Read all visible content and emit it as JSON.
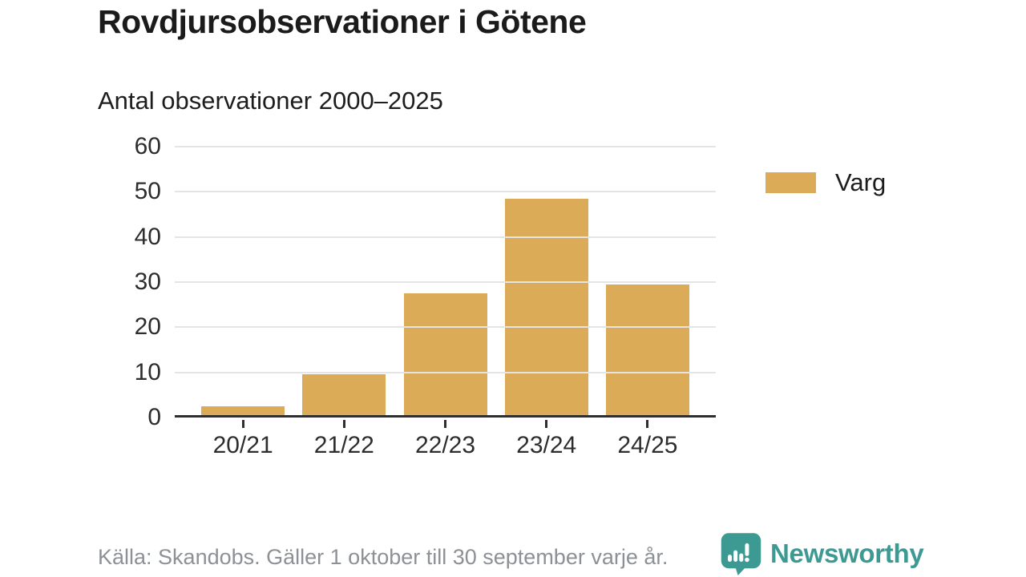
{
  "header": {
    "title": "Rovdjursobservationer i Götene",
    "subtitle": "Antal observationer 2000–2025"
  },
  "legend": {
    "items": [
      {
        "label": "Varg",
        "color": "#DBAB58"
      }
    ]
  },
  "footer": {
    "source": "Källa: Skandobs. Gäller 1 oktober till 30 september varje år.",
    "brand_name": "Newsworthy",
    "brand_color": "#3c9a92"
  },
  "colors": {
    "bar": "#DBAB58",
    "gridline": "#e4e4e4",
    "axis": "#2e2e2e",
    "text_dark": "#1d1d1d",
    "text_muted": "#8d9095"
  },
  "chart_data": {
    "type": "bar",
    "title": "Rovdjursobservationer i Götene",
    "subtitle": "Antal observationer 2000–2025",
    "categories": [
      "20/21",
      "21/22",
      "22/23",
      "23/24",
      "24/25"
    ],
    "series": [
      {
        "name": "Varg",
        "values": [
          2,
          9,
          27,
          48,
          29
        ],
        "color": "#DBAB58"
      }
    ],
    "xlabel": "",
    "ylabel": "",
    "ylim": [
      0,
      60
    ],
    "yticks": [
      0,
      10,
      20,
      30,
      40,
      50,
      60
    ],
    "grid": true,
    "legend_position": "right"
  }
}
